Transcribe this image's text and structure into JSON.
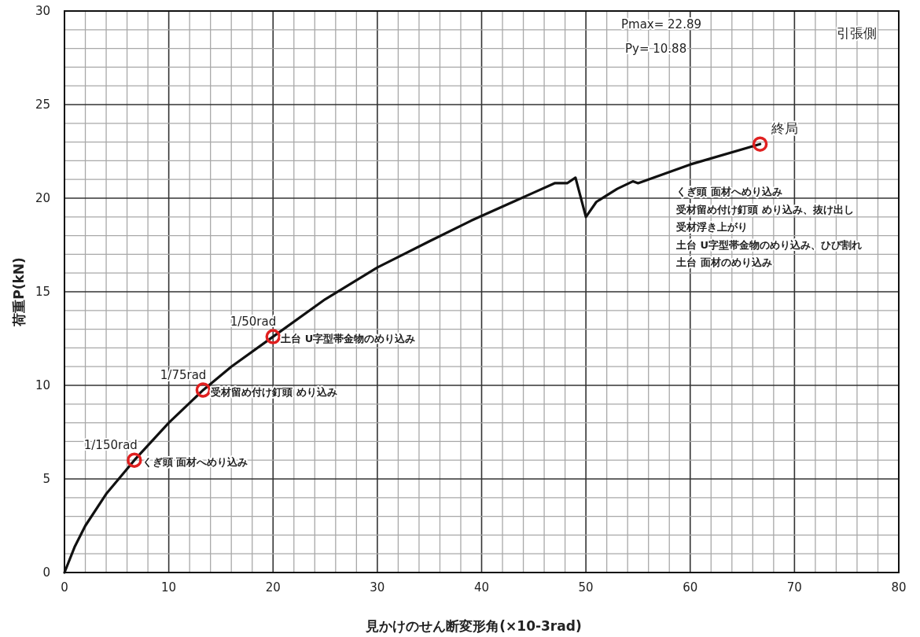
{
  "chart_data": {
    "type": "line",
    "xlabel": "見かけのせん断変形角(×10-3rad)",
    "ylabel": "荷重P(kN)",
    "xlim": [
      0,
      80
    ],
    "ylim": [
      0,
      30
    ],
    "xticks": [
      0,
      {
        "value": 2,
        "label": null
      },
      {
        "value": 4,
        "label": null
      },
      {
        "value": 6,
        "label": null
      },
      {
        "value": 8,
        "label": null
      },
      10,
      {
        "value": 12,
        "label": null
      },
      {
        "value": 14,
        "label": null
      },
      {
        "value": 16,
        "label": null
      },
      {
        "value": 18,
        "label": null
      },
      20,
      {
        "value": 22,
        "label": null
      },
      {
        "value": 24,
        "label": null
      },
      {
        "value": 26,
        "label": null
      },
      {
        "value": 28,
        "label": null
      },
      30,
      {
        "value": 32,
        "label": null
      },
      {
        "value": 34,
        "label": null
      },
      {
        "value": 36,
        "label": null
      },
      {
        "value": 38,
        "label": null
      },
      40,
      {
        "value": 42,
        "label": null
      },
      {
        "value": 44,
        "label": null
      },
      {
        "value": 46,
        "label": null
      },
      {
        "value": 48,
        "label": null
      },
      50,
      {
        "value": 52,
        "label": null
      },
      {
        "value": 54,
        "label": null
      },
      {
        "value": 56,
        "label": null
      },
      {
        "value": 58,
        "label": null
      },
      60,
      {
        "value": 62,
        "label": null
      },
      {
        "value": 64,
        "label": null
      },
      {
        "value": 66,
        "label": null
      },
      {
        "value": 68,
        "label": null
      },
      70,
      {
        "value": 72,
        "label": null
      },
      {
        "value": 74,
        "label": null
      },
      {
        "value": 76,
        "label": null
      },
      {
        "value": 78,
        "label": null
      },
      80
    ],
    "yticks": [
      0,
      {
        "value": 1,
        "label": null
      },
      {
        "value": 2,
        "label": null
      },
      {
        "value": 3,
        "label": null
      },
      {
        "value": 4,
        "label": null
      },
      5,
      {
        "value": 6,
        "label": null
      },
      {
        "value": 7,
        "label": null
      },
      {
        "value": 8,
        "label": null
      },
      {
        "value": 9,
        "label": null
      },
      10,
      {
        "value": 11,
        "label": null
      },
      {
        "value": 12,
        "label": null
      },
      {
        "value": 13,
        "label": null
      },
      {
        "value": 14,
        "label": null
      },
      15,
      {
        "value": 16,
        "label": null
      },
      {
        "value": 17,
        "label": null
      },
      {
        "value": 18,
        "label": null
      },
      {
        "value": 19,
        "label": null
      },
      20,
      {
        "value": 21,
        "label": null
      },
      {
        "value": 22,
        "label": null
      },
      {
        "value": 23,
        "label": null
      },
      {
        "value": 24,
        "label": null
      },
      25,
      {
        "value": 26,
        "label": null
      },
      {
        "value": 27,
        "label": null
      },
      {
        "value": 28,
        "label": null
      },
      {
        "value": 29,
        "label": null
      },
      30
    ],
    "grid": true,
    "series": [
      {
        "color": "#111111",
        "x": [
          0,
          1,
          2,
          4,
          6.7,
          10,
          13.3,
          16,
          20,
          25,
          30,
          35,
          39,
          43,
          45,
          47,
          48.2,
          49,
          50,
          51,
          53,
          54.5,
          55,
          60,
          66.7
        ],
        "values": [
          0,
          1.4,
          2.5,
          4.2,
          6.0,
          8.0,
          9.75,
          11.0,
          12.6,
          14.6,
          16.3,
          17.7,
          18.8,
          19.8,
          20.3,
          20.8,
          20.8,
          21.1,
          19.0,
          19.8,
          20.5,
          20.9,
          20.8,
          21.8,
          22.89
        ]
      },
      {
        "type": "scatter",
        "color": "#e02020",
        "marker": "circle",
        "x": [
          6.7,
          13.3,
          20,
          66.7
        ],
        "values": [
          6.0,
          9.75,
          12.6,
          22.89
        ]
      }
    ],
    "annotations": [
      {
        "text": "1/150rad",
        "x": 6.7,
        "y": 6.0
      },
      {
        "text": "くぎ頭 面材へめり込み",
        "x": 6.7,
        "y": 6.0
      },
      {
        "text": "1/75rad",
        "x": 13.3,
        "y": 9.75
      },
      {
        "text": "受材留め付け釘頭 めり込み",
        "x": 13.3,
        "y": 9.75
      },
      {
        "text": "1/50rad",
        "x": 20,
        "y": 12.6
      },
      {
        "text": "土台 U字型帯金物のめり込み",
        "x": 20,
        "y": 12.6
      },
      {
        "text": "終局",
        "x": 66.7,
        "y": 22.89
      },
      "Pmax= 22.89",
      "Py= 10.88",
      "引張側",
      "くぎ頭 面材へめり込み",
      "受材留め付け釘頭 めり込み、抜け出し",
      "受材浮き上がり",
      "土台 U字型帯金物のめり込み、ひび割れ",
      "土台 面材のめり込み"
    ]
  }
}
